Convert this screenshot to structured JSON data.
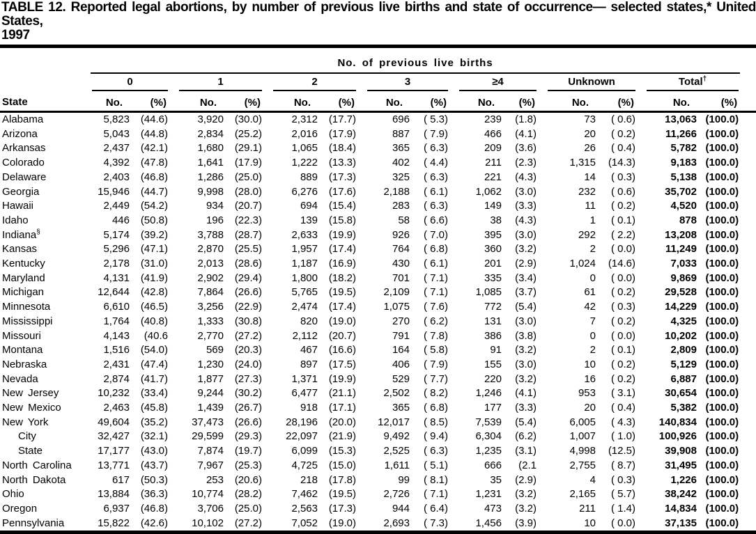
{
  "title": {
    "line1": "TABLE 12. Reported legal abortions, by number of previous live births and state of occurrence— selected states,* United States,",
    "line2": "1997"
  },
  "table": {
    "span_header": "No. of previous live births",
    "state_header": "State",
    "groups": [
      {
        "label": "0",
        "sup": ""
      },
      {
        "label": "1",
        "sup": ""
      },
      {
        "label": "2",
        "sup": ""
      },
      {
        "label": "3",
        "sup": ""
      },
      {
        "label": "≥4",
        "sup": ""
      },
      {
        "label": "Unknown",
        "sup": ""
      },
      {
        "label": "Total",
        "sup": "†"
      }
    ],
    "subheaders": {
      "no": "No.",
      "pct": "(%)"
    },
    "rows": [
      {
        "state": "Alabama",
        "cells": [
          "5,823",
          "(44.6)",
          "3,920",
          "(30.0)",
          "2,312",
          "(17.7)",
          "696",
          "( 5.3)",
          "239",
          "(1.8)",
          "73",
          "( 0.6)",
          "13,063",
          "(100.0)"
        ]
      },
      {
        "state": "Arizona",
        "cells": [
          "5,043",
          "(44.8)",
          "2,834",
          "(25.2)",
          "2,016",
          "(17.9)",
          "887",
          "( 7.9)",
          "466",
          "(4.1)",
          "20",
          "( 0.2)",
          "11,266",
          "(100.0)"
        ]
      },
      {
        "state": "Arkansas",
        "cells": [
          "2,437",
          "(42.1)",
          "1,680",
          "(29.1)",
          "1,065",
          "(18.4)",
          "365",
          "( 6.3)",
          "209",
          "(3.6)",
          "26",
          "( 0.4)",
          "5,782",
          "(100.0)"
        ]
      },
      {
        "state": "Colorado",
        "cells": [
          "4,392",
          "(47.8)",
          "1,641",
          "(17.9)",
          "1,222",
          "(13.3)",
          "402",
          "( 4.4)",
          "211",
          "(2.3)",
          "1,315",
          "(14.3)",
          "9,183",
          "(100.0)"
        ]
      },
      {
        "state": "Delaware",
        "cells": [
          "2,403",
          "(46.8)",
          "1,286",
          "(25.0)",
          "889",
          "(17.3)",
          "325",
          "( 6.3)",
          "221",
          "(4.3)",
          "14",
          "( 0.3)",
          "5,138",
          "(100.0)"
        ]
      },
      {
        "state": "Georgia",
        "cells": [
          "15,946",
          "(44.7)",
          "9,998",
          "(28.0)",
          "6,276",
          "(17.6)",
          "2,188",
          "( 6.1)",
          "1,062",
          "(3.0)",
          "232",
          "( 0.6)",
          "35,702",
          "(100.0)"
        ]
      },
      {
        "state": "Hawaii",
        "cells": [
          "2,449",
          "(54.2)",
          "934",
          "(20.7)",
          "694",
          "(15.4)",
          "283",
          "( 6.3)",
          "149",
          "(3.3)",
          "11",
          "( 0.2)",
          "4,520",
          "(100.0)"
        ]
      },
      {
        "state": "Idaho",
        "cells": [
          "446",
          "(50.8)",
          "196",
          "(22.3)",
          "139",
          "(15.8)",
          "58",
          "( 6.6)",
          "38",
          "(4.3)",
          "1",
          "( 0.1)",
          "878",
          "(100.0)"
        ]
      },
      {
        "state": "Indiana",
        "sup": "§",
        "cells": [
          "5,174",
          "(39.2)",
          "3,788",
          "(28.7)",
          "2,633",
          "(19.9)",
          "926",
          "( 7.0)",
          "395",
          "(3.0)",
          "292",
          "( 2.2)",
          "13,208",
          "(100.0)"
        ]
      },
      {
        "state": "Kansas",
        "cells": [
          "5,296",
          "(47.1)",
          "2,870",
          "(25.5)",
          "1,957",
          "(17.4)",
          "764",
          "( 6.8)",
          "360",
          "(3.2)",
          "2",
          "( 0.0)",
          "11,249",
          "(100.0)"
        ]
      },
      {
        "state": "Kentucky",
        "cells": [
          "2,178",
          "(31.0)",
          "2,013",
          "(28.6)",
          "1,187",
          "(16.9)",
          "430",
          "( 6.1)",
          "201",
          "(2.9)",
          "1,024",
          "(14.6)",
          "7,033",
          "(100.0)"
        ]
      },
      {
        "state": "Maryland",
        "cells": [
          "4,131",
          "(41.9)",
          "2,902",
          "(29.4)",
          "1,800",
          "(18.2)",
          "701",
          "( 7.1)",
          "335",
          "(3.4)",
          "0",
          "( 0.0)",
          "9,869",
          "(100.0)"
        ]
      },
      {
        "state": "Michigan",
        "cells": [
          "12,644",
          "(42.8)",
          "7,864",
          "(26.6)",
          "5,765",
          "(19.5)",
          "2,109",
          "( 7.1)",
          "1,085",
          "(3.7)",
          "61",
          "( 0.2)",
          "29,528",
          "(100.0)"
        ]
      },
      {
        "state": "Minnesota",
        "cells": [
          "6,610",
          "(46.5)",
          "3,256",
          "(22.9)",
          "2,474",
          "(17.4)",
          "1,075",
          "( 7.6)",
          "772",
          "(5.4)",
          "42",
          "( 0.3)",
          "14,229",
          "(100.0)"
        ]
      },
      {
        "state": "Mississippi",
        "cells": [
          "1,764",
          "(40.8)",
          "1,333",
          "(30.8)",
          "820",
          "(19.0)",
          "270",
          "( 6.2)",
          "131",
          "(3.0)",
          "7",
          "( 0.2)",
          "4,325",
          "(100.0)"
        ]
      },
      {
        "state": "Missouri",
        "cells": [
          "4,143",
          "(40.6",
          "2,770",
          "(27.2)",
          "2,112",
          "(20.7)",
          "791",
          "( 7.8)",
          "386",
          "(3.8)",
          "0",
          "( 0.0)",
          "10,202",
          "(100.0)"
        ]
      },
      {
        "state": "Montana",
        "cells": [
          "1,516",
          "(54.0)",
          "569",
          "(20.3)",
          "467",
          "(16.6)",
          "164",
          "( 5.8)",
          "91",
          "(3.2)",
          "2",
          "( 0.1)",
          "2,809",
          "(100.0)"
        ]
      },
      {
        "state": "Nebraska",
        "cells": [
          "2,431",
          "(47.4)",
          "1,230",
          "(24.0)",
          "897",
          "(17.5)",
          "406",
          "( 7.9)",
          "155",
          "(3.0)",
          "10",
          "( 0.2)",
          "5,129",
          "(100.0)"
        ]
      },
      {
        "state": "Nevada",
        "cells": [
          "2,874",
          "(41.7)",
          "1,877",
          "(27.3)",
          "1,371",
          "(19.9)",
          "529",
          "( 7.7)",
          "220",
          "(3.2)",
          "16",
          "( 0.2)",
          "6,887",
          "(100.0)"
        ]
      },
      {
        "state": "New Jersey",
        "cells": [
          "10,232",
          "(33.4)",
          "9,244",
          "(30.2)",
          "6,477",
          "(21.1)",
          "2,502",
          "( 8.2)",
          "1,246",
          "(4.1)",
          "953",
          "( 3.1)",
          "30,654",
          "(100.0)"
        ]
      },
      {
        "state": "New Mexico",
        "cells": [
          "2,463",
          "(45.8)",
          "1,439",
          "(26.7)",
          "918",
          "(17.1)",
          "365",
          "( 6.8)",
          "177",
          "(3.3)",
          "20",
          "( 0.4)",
          "5,382",
          "(100.0)"
        ]
      },
      {
        "state": "New York",
        "cells": [
          "49,604",
          "(35.2)",
          "37,473",
          "(26.6)",
          "28,196",
          "(20.0)",
          "12,017",
          "( 8.5)",
          "7,539",
          "(5.4)",
          "6,005",
          "( 4.3)",
          "140,834",
          "(100.0)"
        ]
      },
      {
        "state": "City",
        "indent": true,
        "cells": [
          "32,427",
          "(32.1)",
          "29,599",
          "(29.3)",
          "22,097",
          "(21.9)",
          "9,492",
          "( 9.4)",
          "6,304",
          "(6.2)",
          "1,007",
          "( 1.0)",
          "100,926",
          "(100.0)"
        ]
      },
      {
        "state": "State",
        "indent": true,
        "cells": [
          "17,177",
          "(43.0)",
          "7,874",
          "(19.7)",
          "6,099",
          "(15.3)",
          "2,525",
          "( 6.3)",
          "1,235",
          "(3.1)",
          "4,998",
          "(12.5)",
          "39,908",
          "(100.0)"
        ]
      },
      {
        "state": "North Carolina",
        "cells": [
          "13,771",
          "(43.7)",
          "7,967",
          "(25.3)",
          "4,725",
          "(15.0)",
          "1,611",
          "( 5.1)",
          "666",
          "(2.1",
          "2,755",
          "( 8.7)",
          "31,495",
          "(100.0)"
        ]
      },
      {
        "state": "North Dakota",
        "cells": [
          "617",
          "(50.3)",
          "253",
          "(20.6)",
          "218",
          "(17.8)",
          "99",
          "( 8.1)",
          "35",
          "(2.9)",
          "4",
          "( 0.3)",
          "1,226",
          "(100.0)"
        ]
      },
      {
        "state": "Ohio",
        "cells": [
          "13,884",
          "(36.3)",
          "10,774",
          "(28.2)",
          "7,462",
          "(19.5)",
          "2,726",
          "( 7.1)",
          "1,231",
          "(3.2)",
          "2,165",
          "( 5.7)",
          "38,242",
          "(100.0)"
        ]
      },
      {
        "state": "Oregon",
        "cells": [
          "6,937",
          "(46.8)",
          "3,706",
          "(25.0)",
          "2,563",
          "(17.3)",
          "944",
          "( 6.4)",
          "473",
          "(3.2)",
          "211",
          "( 1.4)",
          "14,834",
          "(100.0)"
        ]
      },
      {
        "state": "Pennsylvania",
        "cells": [
          "15,822",
          "(42.6)",
          "10,102",
          "(27.2)",
          "7,052",
          "(19.0)",
          "2,693",
          "( 7.3)",
          "1,456",
          "(3.9)",
          "10",
          "( 0.0)",
          "37,135",
          "(100.0)"
        ]
      }
    ]
  }
}
